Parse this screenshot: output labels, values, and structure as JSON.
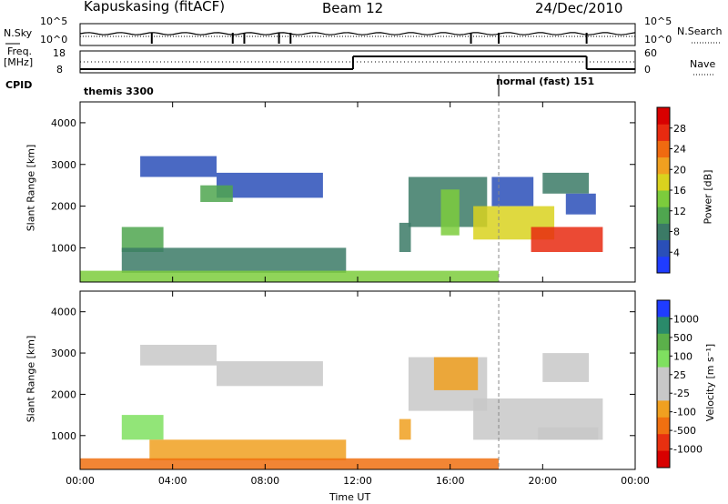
{
  "header": {
    "station": "Kapuskasing (fitACF)",
    "beam": "Beam 12",
    "date": "24/Dec/2010"
  },
  "top_panels": {
    "nsky_label": "N.Sky",
    "nsky_ticks": [
      "10^5",
      "10^0"
    ],
    "nsearch_label": "N.Search",
    "nsearch_ticks": [
      "10^5",
      "10^0"
    ],
    "freq_label": "Freq.",
    "freq_unit": "[MHz]",
    "freq_ticks": [
      "18",
      "8"
    ],
    "nave_label": "Nave",
    "nave_ticks": [
      "60",
      "0"
    ],
    "cpid_label": "CPID",
    "cpid_segments": [
      {
        "label": "themis 3300",
        "start_hour": 0,
        "end_hour": 18
      },
      {
        "label": "normal (fast) 151",
        "start_hour": 18,
        "end_hour": 24
      }
    ],
    "freq_steps": [
      {
        "start_hour": 0,
        "end_hour": 11.8,
        "level": "low"
      },
      {
        "start_hour": 11.8,
        "end_hour": 21.9,
        "level": "high"
      },
      {
        "start_hour": 21.9,
        "end_hour": 24,
        "level": "low"
      }
    ]
  },
  "chart_data": [
    {
      "type": "heatmap",
      "name": "power",
      "ylabel": "Slant Range [km]",
      "xlabel": "",
      "xlim": [
        0,
        24
      ],
      "ylim": [
        180,
        4500
      ],
      "x_ticks": [
        "00:00",
        "04:00",
        "08:00",
        "12:00",
        "16:00",
        "20:00",
        "00:00"
      ],
      "y_ticks": [
        1000,
        2000,
        3000,
        4000
      ],
      "colorbar": {
        "label": "Power [dB]",
        "ticks": [
          "28",
          "24",
          "20",
          "16",
          "12",
          "8",
          "4"
        ],
        "colors": [
          "#1f3cff",
          "#2a4fb8",
          "#3b7a66",
          "#4fa64f",
          "#7ccc3c",
          "#d9d21e",
          "#f0a020",
          "#f06a10",
          "#e82a10",
          "#d80000"
        ]
      },
      "echo_regions": [
        {
          "t0": 2.6,
          "t1": 5.9,
          "r0": 2700,
          "r1": 3200,
          "level": 1
        },
        {
          "t0": 5.9,
          "t1": 10.5,
          "r0": 2200,
          "r1": 2800,
          "level": 1
        },
        {
          "t0": 5.2,
          "t1": 6.6,
          "r0": 2100,
          "r1": 2500,
          "level": 3
        },
        {
          "t0": 1.8,
          "t1": 3.6,
          "r0": 900,
          "r1": 1500,
          "level": 3
        },
        {
          "t0": 1.8,
          "t1": 11.5,
          "r0": 400,
          "r1": 1000,
          "level": 2
        },
        {
          "t0": 0,
          "t1": 18.1,
          "r0": 180,
          "r1": 450,
          "level": 4
        },
        {
          "t0": 13.8,
          "t1": 14.3,
          "r0": 900,
          "r1": 1600,
          "level": 2
        },
        {
          "t0": 14.2,
          "t1": 17.6,
          "r0": 1500,
          "r1": 2700,
          "level": 2
        },
        {
          "t0": 15.6,
          "t1": 16.4,
          "r0": 1300,
          "r1": 2400,
          "level": 4
        },
        {
          "t0": 17.8,
          "t1": 19.6,
          "r0": 2000,
          "r1": 2700,
          "level": 1
        },
        {
          "t0": 17.0,
          "t1": 20.5,
          "r0": 1200,
          "r1": 2000,
          "level": 5
        },
        {
          "t0": 19.5,
          "t1": 22.6,
          "r0": 900,
          "r1": 1500,
          "level": 8
        },
        {
          "t0": 20.0,
          "t1": 22.0,
          "r0": 2300,
          "r1": 2800,
          "level": 2
        },
        {
          "t0": 21.0,
          "t1": 22.3,
          "r0": 1800,
          "r1": 2300,
          "level": 1
        }
      ]
    },
    {
      "type": "heatmap",
      "name": "velocity",
      "ylabel": "Slant Range [km]",
      "xlabel": "Time UT",
      "xlim": [
        0,
        24
      ],
      "ylim": [
        180,
        4500
      ],
      "x_ticks": [
        "00:00",
        "04:00",
        "08:00",
        "12:00",
        "16:00",
        "20:00",
        "00:00"
      ],
      "y_ticks": [
        1000,
        2000,
        3000,
        4000
      ],
      "colorbar": {
        "label": "Velocity [m s⁻¹]",
        "ticks": [
          "1000",
          "500",
          "100",
          "25",
          "-25",
          "-100",
          "-500",
          "-1000"
        ],
        "colors": [
          "#1f3cff",
          "#2a8a6a",
          "#5bb04a",
          "#7fe060",
          "#c8c8c8",
          "#c8c8c8",
          "#f0a020",
          "#f07010",
          "#e83010",
          "#d80000"
        ]
      },
      "echo_regions": [
        {
          "t0": 2.6,
          "t1": 5.9,
          "r0": 2700,
          "r1": 3200,
          "level": 4
        },
        {
          "t0": 5.9,
          "t1": 10.5,
          "r0": 2200,
          "r1": 2800,
          "level": 4
        },
        {
          "t0": 1.8,
          "t1": 3.6,
          "r0": 900,
          "r1": 1500,
          "level": 3
        },
        {
          "t0": 3.0,
          "t1": 11.5,
          "r0": 400,
          "r1": 900,
          "level": 6
        },
        {
          "t0": 0,
          "t1": 18.1,
          "r0": 180,
          "r1": 450,
          "level": 7
        },
        {
          "t0": 13.8,
          "t1": 14.3,
          "r0": 900,
          "r1": 1400,
          "level": 6
        },
        {
          "t0": 14.2,
          "t1": 17.6,
          "r0": 1600,
          "r1": 2900,
          "level": 4
        },
        {
          "t0": 15.3,
          "t1": 17.2,
          "r0": 2100,
          "r1": 2900,
          "level": 6
        },
        {
          "t0": 17.0,
          "t1": 22.6,
          "r0": 900,
          "r1": 1900,
          "level": 4
        },
        {
          "t0": 19.8,
          "t1": 22.4,
          "r0": 900,
          "r1": 1200,
          "level": 5
        },
        {
          "t0": 20.0,
          "t1": 22.0,
          "r0": 2300,
          "r1": 3000,
          "level": 4
        }
      ]
    }
  ]
}
